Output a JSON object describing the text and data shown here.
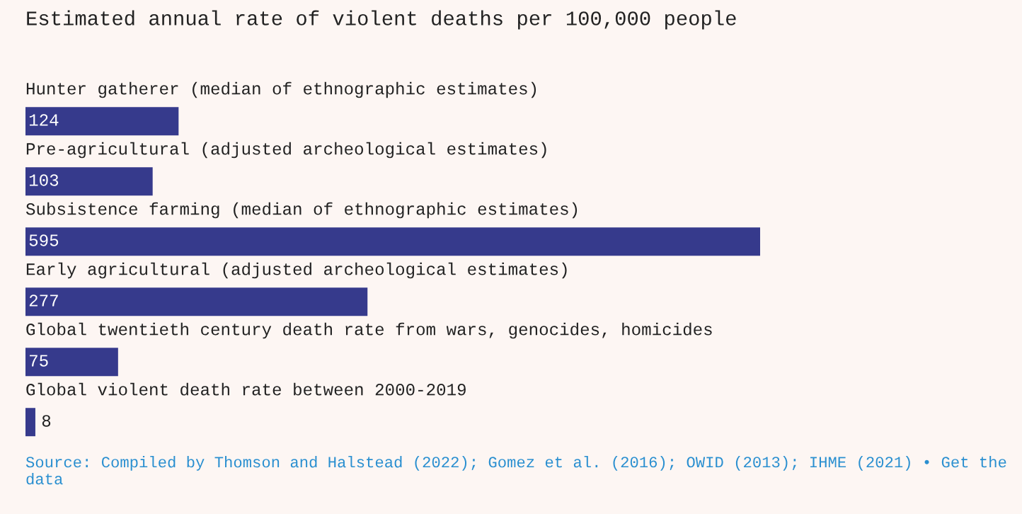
{
  "chart_data": {
    "type": "bar",
    "orientation": "horizontal",
    "title": "Estimated annual rate of violent deaths per 100,000 people",
    "categories": [
      "Hunter gatherer (median of ethnographic estimates)",
      "Pre-agricultural (adjusted archeological estimates)",
      "Subsistence farming (median of ethnographic estimates)",
      "Early agricultural (adjusted archeological estimates)",
      "Global twentieth century death rate from wars, genocides, homicides",
      "Global violent death rate between 2000-2019"
    ],
    "values": [
      124,
      103,
      595,
      277,
      75,
      8
    ],
    "color": "#363a8c",
    "data_labels": true,
    "annotations": [
      "Source: Compiled by Thomson and Halstead (2022); Gomez et al. (2016); OWID (2013); IHME (2021) • Get the data"
    ]
  }
}
